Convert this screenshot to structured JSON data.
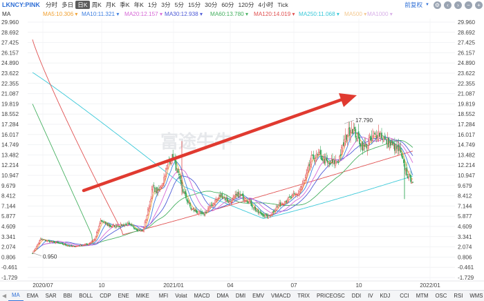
{
  "toolbar": {
    "symbol": "LKNCY:PINK",
    "periods": [
      "分时",
      "多日",
      "日K",
      "周K",
      "月K",
      "季K",
      "年K",
      "1分",
      "3分",
      "5分",
      "15分",
      "30分",
      "60分",
      "120分",
      "4小时",
      "Tick"
    ],
    "active_period": "日K",
    "adjust_label": "前复权",
    "right_icons": [
      "gear-icon",
      "chevron-left-icon",
      "chevron-right-icon",
      "minus-icon",
      "plus-icon"
    ],
    "right_icon_glyphs": [
      "⚙",
      "‹",
      "›",
      "−",
      "+"
    ]
  },
  "indicator_label": "MA",
  "ma_legend": [
    {
      "label": "MA5:10.306",
      "color": "#f0a030"
    },
    {
      "label": "MA10:11.321",
      "color": "#3d7ee0"
    },
    {
      "label": "MA20:12.157",
      "color": "#d668d6"
    },
    {
      "label": "MA30:12.938",
      "color": "#4d5ad6"
    },
    {
      "label": "MA60:13.780",
      "color": "#45b060"
    },
    {
      "label": "MA120:14.019",
      "color": "#e05050"
    },
    {
      "label": "MA250:11.068",
      "color": "#39c8d8"
    },
    {
      "label": "MA500",
      "color": "#f3c890"
    },
    {
      "label": "MA1000",
      "color": "#d8b0e8"
    }
  ],
  "chart_data": {
    "type": "candlestick",
    "y_axis_labels": [
      "29.960",
      "28.692",
      "27.425",
      "26.157",
      "24.890",
      "23.622",
      "22.355",
      "21.087",
      "19.819",
      "18.552",
      "17.284",
      "16.017",
      "14.749",
      "13.482",
      "12.214",
      "10.947",
      "9.679",
      "8.412",
      "7.144",
      "5.877",
      "4.609",
      "3.341",
      "2.074",
      "0.806",
      "-0.461",
      "-1.729"
    ],
    "ylim": [
      -1.729,
      29.96
    ],
    "x_axis_labels": [
      "2020/07",
      "10",
      "2021/01",
      "04",
      "07",
      "10",
      "2022/01"
    ],
    "annotations": [
      {
        "text": "17.790",
        "kind": "high"
      },
      {
        "text": "0.950",
        "kind": "low"
      }
    ],
    "up_color": "#e24b4b",
    "down_color": "#35a85a",
    "trend_arrow_color": "#e03a30",
    "watermark": "富途牛牛"
  },
  "indicators": [
    "MA",
    "EMA",
    "SAR",
    "BBI",
    "BOLL",
    "CDP",
    "ENE",
    "MIKE",
    "MFI",
    "Volat",
    "MACD",
    "DMA",
    "DMI",
    "EMV",
    "VMACD",
    "TRIX",
    "PRICEOSC",
    "DDI",
    "IV",
    "KDJ",
    "CCI",
    "MTM",
    "OSC",
    "RSI",
    "WMS"
  ],
  "active_indicator": "MA",
  "left_arrow_glyph": "◀",
  "right_arrow_glyph": "▶",
  "sep_after": [
    7,
    19
  ]
}
